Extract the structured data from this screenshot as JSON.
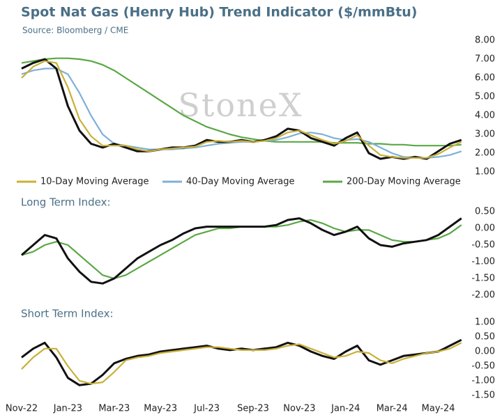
{
  "chart_data": [
    {
      "type": "line",
      "title": "Spot Nat Gas (Henry Hub) Trend Indicator ($/mmBtu)",
      "subtitle": "Source: Bloomberg / CME",
      "watermark": "StoneX",
      "ylim": [
        1,
        8
      ],
      "yticks": [
        {
          "value": 1,
          "label": "1.00"
        },
        {
          "value": 2,
          "label": "2.00"
        },
        {
          "value": 3,
          "label": "3.00"
        },
        {
          "value": 4,
          "label": "4.00"
        },
        {
          "value": 5,
          "label": "5.00"
        },
        {
          "value": 6,
          "label": "6.00"
        },
        {
          "value": 7,
          "label": "7.00"
        },
        {
          "value": 8,
          "label": "8.00"
        }
      ],
      "grid": false,
      "legend": "bottom",
      "series": [
        {
          "name": "200-Day Moving Average",
          "color": "#5aa845",
          "values": [
            6.8,
            6.9,
            7.0,
            7.05,
            7.05,
            7.0,
            6.9,
            6.7,
            6.4,
            6.0,
            5.6,
            5.2,
            4.8,
            4.4,
            4.0,
            3.7,
            3.4,
            3.2,
            3.0,
            2.85,
            2.75,
            2.65,
            2.6,
            2.6,
            2.6,
            2.6,
            2.6,
            2.55,
            2.55,
            2.55,
            2.5,
            2.5,
            2.45,
            2.45,
            2.4,
            2.4,
            2.4,
            2.4,
            2.45
          ]
        },
        {
          "name": "40-Day Moving Average",
          "color": "#7fb0d8",
          "values": [
            6.2,
            6.4,
            6.5,
            6.5,
            6.2,
            5.2,
            4.0,
            3.0,
            2.5,
            2.4,
            2.3,
            2.2,
            2.2,
            2.2,
            2.25,
            2.3,
            2.4,
            2.5,
            2.55,
            2.6,
            2.6,
            2.65,
            2.7,
            2.85,
            3.05,
            3.1,
            3.0,
            2.8,
            2.7,
            2.75,
            2.6,
            2.3,
            2.0,
            1.8,
            1.75,
            1.75,
            1.8,
            1.9,
            2.1
          ]
        },
        {
          "color": "#111111",
          "values": [
            6.5,
            6.8,
            7.0,
            6.5,
            4.5,
            3.2,
            2.5,
            2.3,
            2.5,
            2.3,
            2.1,
            2.1,
            2.2,
            2.3,
            2.3,
            2.4,
            2.7,
            2.6,
            2.6,
            2.7,
            2.6,
            2.7,
            2.9,
            3.3,
            3.2,
            2.8,
            2.6,
            2.4,
            2.8,
            3.1,
            2.0,
            1.7,
            1.8,
            1.7,
            1.8,
            1.7,
            2.1,
            2.5,
            2.7
          ]
        },
        {
          "name": "10-Day Moving Average",
          "color": "#c9b037",
          "values": [
            6.0,
            6.6,
            6.9,
            6.8,
            5.5,
            3.8,
            2.9,
            2.4,
            2.4,
            2.4,
            2.2,
            2.1,
            2.2,
            2.25,
            2.3,
            2.35,
            2.6,
            2.65,
            2.6,
            2.65,
            2.6,
            2.65,
            2.8,
            3.1,
            3.2,
            2.95,
            2.7,
            2.5,
            2.65,
            2.95,
            2.4,
            1.9,
            1.8,
            1.75,
            1.75,
            1.75,
            1.95,
            2.3,
            2.6
          ]
        }
      ]
    },
    {
      "type": "line",
      "title": "Long Term Index:",
      "ylim": [
        -2,
        0.5
      ],
      "yticks": [
        {
          "value": -2,
          "label": "-2.00"
        },
        {
          "value": -1.5,
          "label": "-1.50"
        },
        {
          "value": -1,
          "label": "-1.00"
        },
        {
          "value": -0.5,
          "label": "-0.50"
        },
        {
          "value": 0,
          "label": "0.00"
        },
        {
          "value": 0.5,
          "label": "0.50"
        }
      ],
      "series": [
        {
          "color": "#5aa845",
          "values": [
            -0.8,
            -0.7,
            -0.5,
            -0.4,
            -0.5,
            -0.8,
            -1.1,
            -1.4,
            -1.5,
            -1.4,
            -1.2,
            -1.0,
            -0.8,
            -0.6,
            -0.4,
            -0.2,
            -0.1,
            0.0,
            0.0,
            0.05,
            0.05,
            0.05,
            0.05,
            0.1,
            0.2,
            0.25,
            0.15,
            0.0,
            -0.1,
            -0.05,
            -0.05,
            -0.2,
            -0.35,
            -0.4,
            -0.4,
            -0.35,
            -0.3,
            -0.15,
            0.1
          ]
        },
        {
          "color": "#111111",
          "values": [
            -0.8,
            -0.5,
            -0.2,
            -0.3,
            -0.9,
            -1.3,
            -1.6,
            -1.65,
            -1.5,
            -1.2,
            -0.9,
            -0.7,
            -0.5,
            -0.35,
            -0.15,
            0.0,
            0.05,
            0.05,
            0.05,
            0.05,
            0.05,
            0.05,
            0.1,
            0.25,
            0.3,
            0.15,
            -0.05,
            -0.2,
            -0.1,
            0.05,
            -0.3,
            -0.5,
            -0.55,
            -0.45,
            -0.4,
            -0.35,
            -0.2,
            0.05,
            0.3
          ]
        }
      ]
    },
    {
      "type": "line",
      "title": "Short Term Index:",
      "categories": [
        "Nov-22",
        null,
        null,
        null,
        "Jan-23",
        null,
        null,
        null,
        "Mar-23",
        null,
        null,
        null,
        "May-23",
        null,
        null,
        null,
        "Jul-23",
        null,
        null,
        null,
        "Sep-23",
        null,
        null,
        null,
        "Nov-23",
        null,
        null,
        null,
        "Jan-24",
        null,
        null,
        null,
        "Mar-24",
        null,
        null,
        null,
        "May-24",
        null,
        null
      ],
      "ylim": [
        -1.5,
        1
      ],
      "yticks": [
        {
          "value": -1.5,
          "label": "-1.50"
        },
        {
          "value": -1,
          "label": "-1.00"
        },
        {
          "value": -0.5,
          "label": "-0.50"
        },
        {
          "value": 0,
          "label": "0.00"
        },
        {
          "value": 0.5,
          "label": "0.50"
        },
        {
          "value": 1,
          "label": "1.00"
        }
      ],
      "series": [
        {
          "color": "#111111",
          "values": [
            -0.2,
            0.1,
            0.3,
            -0.2,
            -0.9,
            -1.15,
            -1.1,
            -0.8,
            -0.4,
            -0.25,
            -0.15,
            -0.1,
            0.0,
            0.05,
            0.1,
            0.15,
            0.2,
            0.1,
            0.05,
            0.1,
            0.05,
            0.1,
            0.15,
            0.3,
            0.2,
            0.0,
            -0.15,
            -0.25,
            0.0,
            0.2,
            -0.3,
            -0.45,
            -0.3,
            -0.15,
            -0.1,
            -0.05,
            0.0,
            0.2,
            0.4
          ]
        },
        {
          "color": "#c9b037",
          "values": [
            -0.6,
            -0.2,
            0.1,
            0.1,
            -0.5,
            -1.0,
            -1.1,
            -1.05,
            -0.7,
            -0.3,
            -0.2,
            -0.15,
            -0.05,
            0.0,
            0.05,
            0.1,
            0.15,
            0.15,
            0.1,
            0.05,
            0.05,
            0.05,
            0.1,
            0.2,
            0.25,
            0.1,
            -0.05,
            -0.2,
            -0.15,
            0.0,
            -0.05,
            -0.3,
            -0.4,
            -0.25,
            -0.15,
            -0.05,
            0.0,
            0.1,
            0.3
          ]
        }
      ]
    }
  ]
}
